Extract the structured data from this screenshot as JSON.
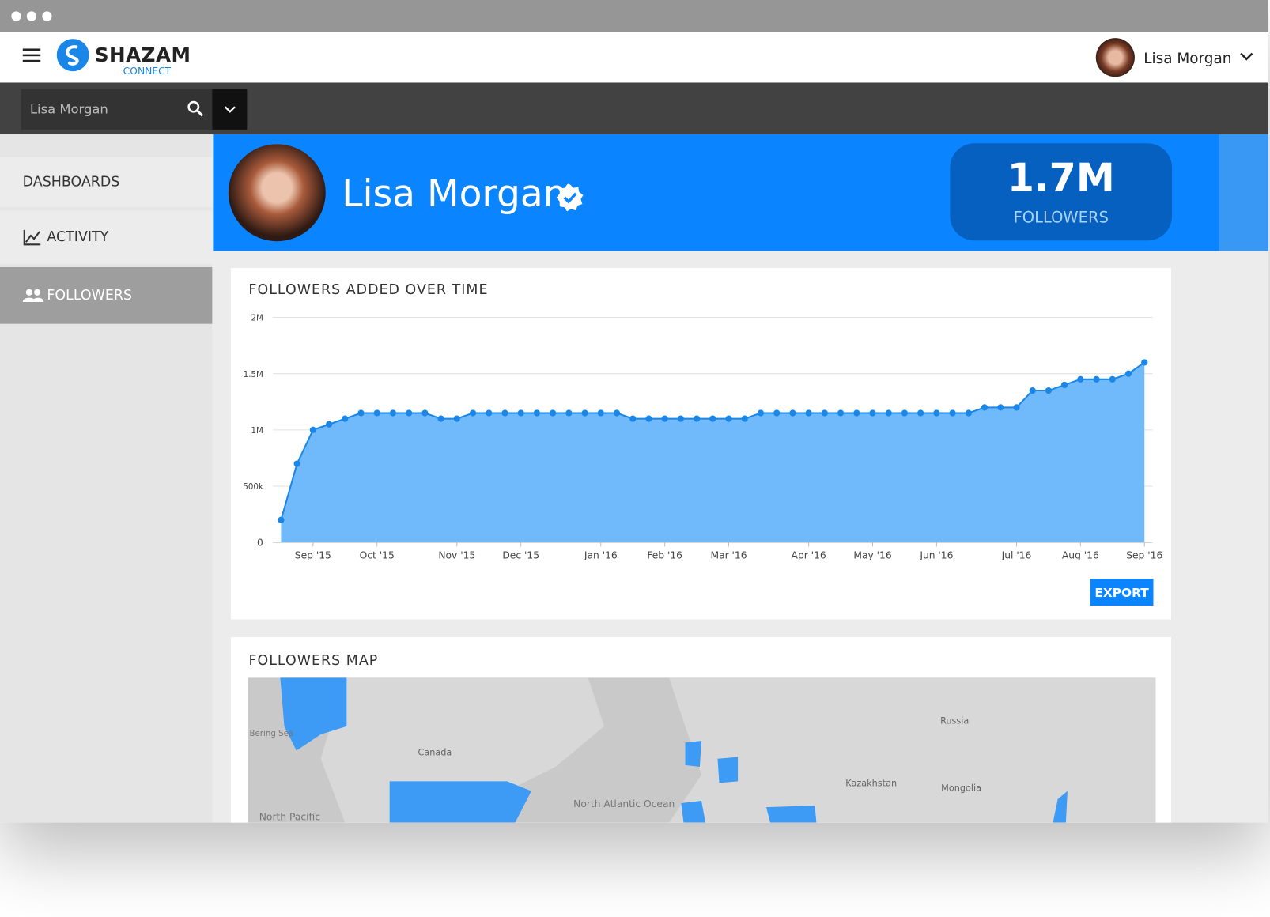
{
  "header": {
    "logo": "SHAZAM",
    "logo_sub": "CONNECT",
    "user": "Lisa Morgan"
  },
  "search": {
    "value": "Lisa Morgan"
  },
  "sidebar": {
    "items": [
      "DASHBOARDS",
      "ACTIVITY",
      "FOLLOWERS"
    ]
  },
  "profile": {
    "name": "Lisa Morgan",
    "stat_value": "1.7M",
    "stat_label": "FOLLOWERS"
  },
  "chart_data": {
    "type": "area",
    "title": "FOLLOWERS ADDED OVER TIME",
    "categories": [
      null,
      null,
      "Sep '15",
      null,
      null,
      null,
      "Oct '15",
      null,
      null,
      null,
      null,
      "Nov '15",
      null,
      null,
      null,
      "Dec '15",
      null,
      null,
      null,
      null,
      "Jan '16",
      null,
      null,
      null,
      "Feb '16",
      null,
      null,
      null,
      "Mar '16",
      null,
      null,
      null,
      null,
      "Apr '16",
      null,
      null,
      null,
      "May '16",
      null,
      null,
      null,
      "Jun '16",
      null,
      null,
      null,
      null,
      "Jul '16",
      null,
      null,
      null,
      "Aug '16",
      null,
      null,
      null,
      "Sep '16"
    ],
    "values": [
      200000,
      700000,
      1000000,
      1050000,
      1100000,
      1150000,
      1150000,
      1150000,
      1150000,
      1150000,
      1100000,
      1100000,
      1150000,
      1150000,
      1150000,
      1150000,
      1150000,
      1150000,
      1150000,
      1150000,
      1150000,
      1150000,
      1100000,
      1100000,
      1100000,
      1100000,
      1100000,
      1100000,
      1100000,
      1100000,
      1150000,
      1150000,
      1150000,
      1150000,
      1150000,
      1150000,
      1150000,
      1150000,
      1150000,
      1150000,
      1150000,
      1150000,
      1150000,
      1150000,
      1200000,
      1200000,
      1200000,
      1350000,
      1350000,
      1400000,
      1450000,
      1450000,
      1450000,
      1500000,
      1600000
    ],
    "color": "#1a86e8",
    "fill_color": "#70b9fb",
    "ylim": [
      0,
      2000000
    ],
    "yticks": [
      0,
      {
        "value": 500000,
        "label": "500k"
      },
      {
        "value": 1000000,
        "label": "1M"
      },
      {
        "value": 1500000,
        "label": "1.5M"
      },
      {
        "value": 2000000,
        "label": "2M"
      }
    ],
    "grid": true
  },
  "export": "EXPORT",
  "map": {
    "title": "FOLLOWERS MAP",
    "labels": [
      "Bering Sea",
      "Canada",
      "North Pacific",
      "North Atlantic Ocean",
      "Russia",
      "Kazakhstan",
      "Mongolia"
    ]
  }
}
